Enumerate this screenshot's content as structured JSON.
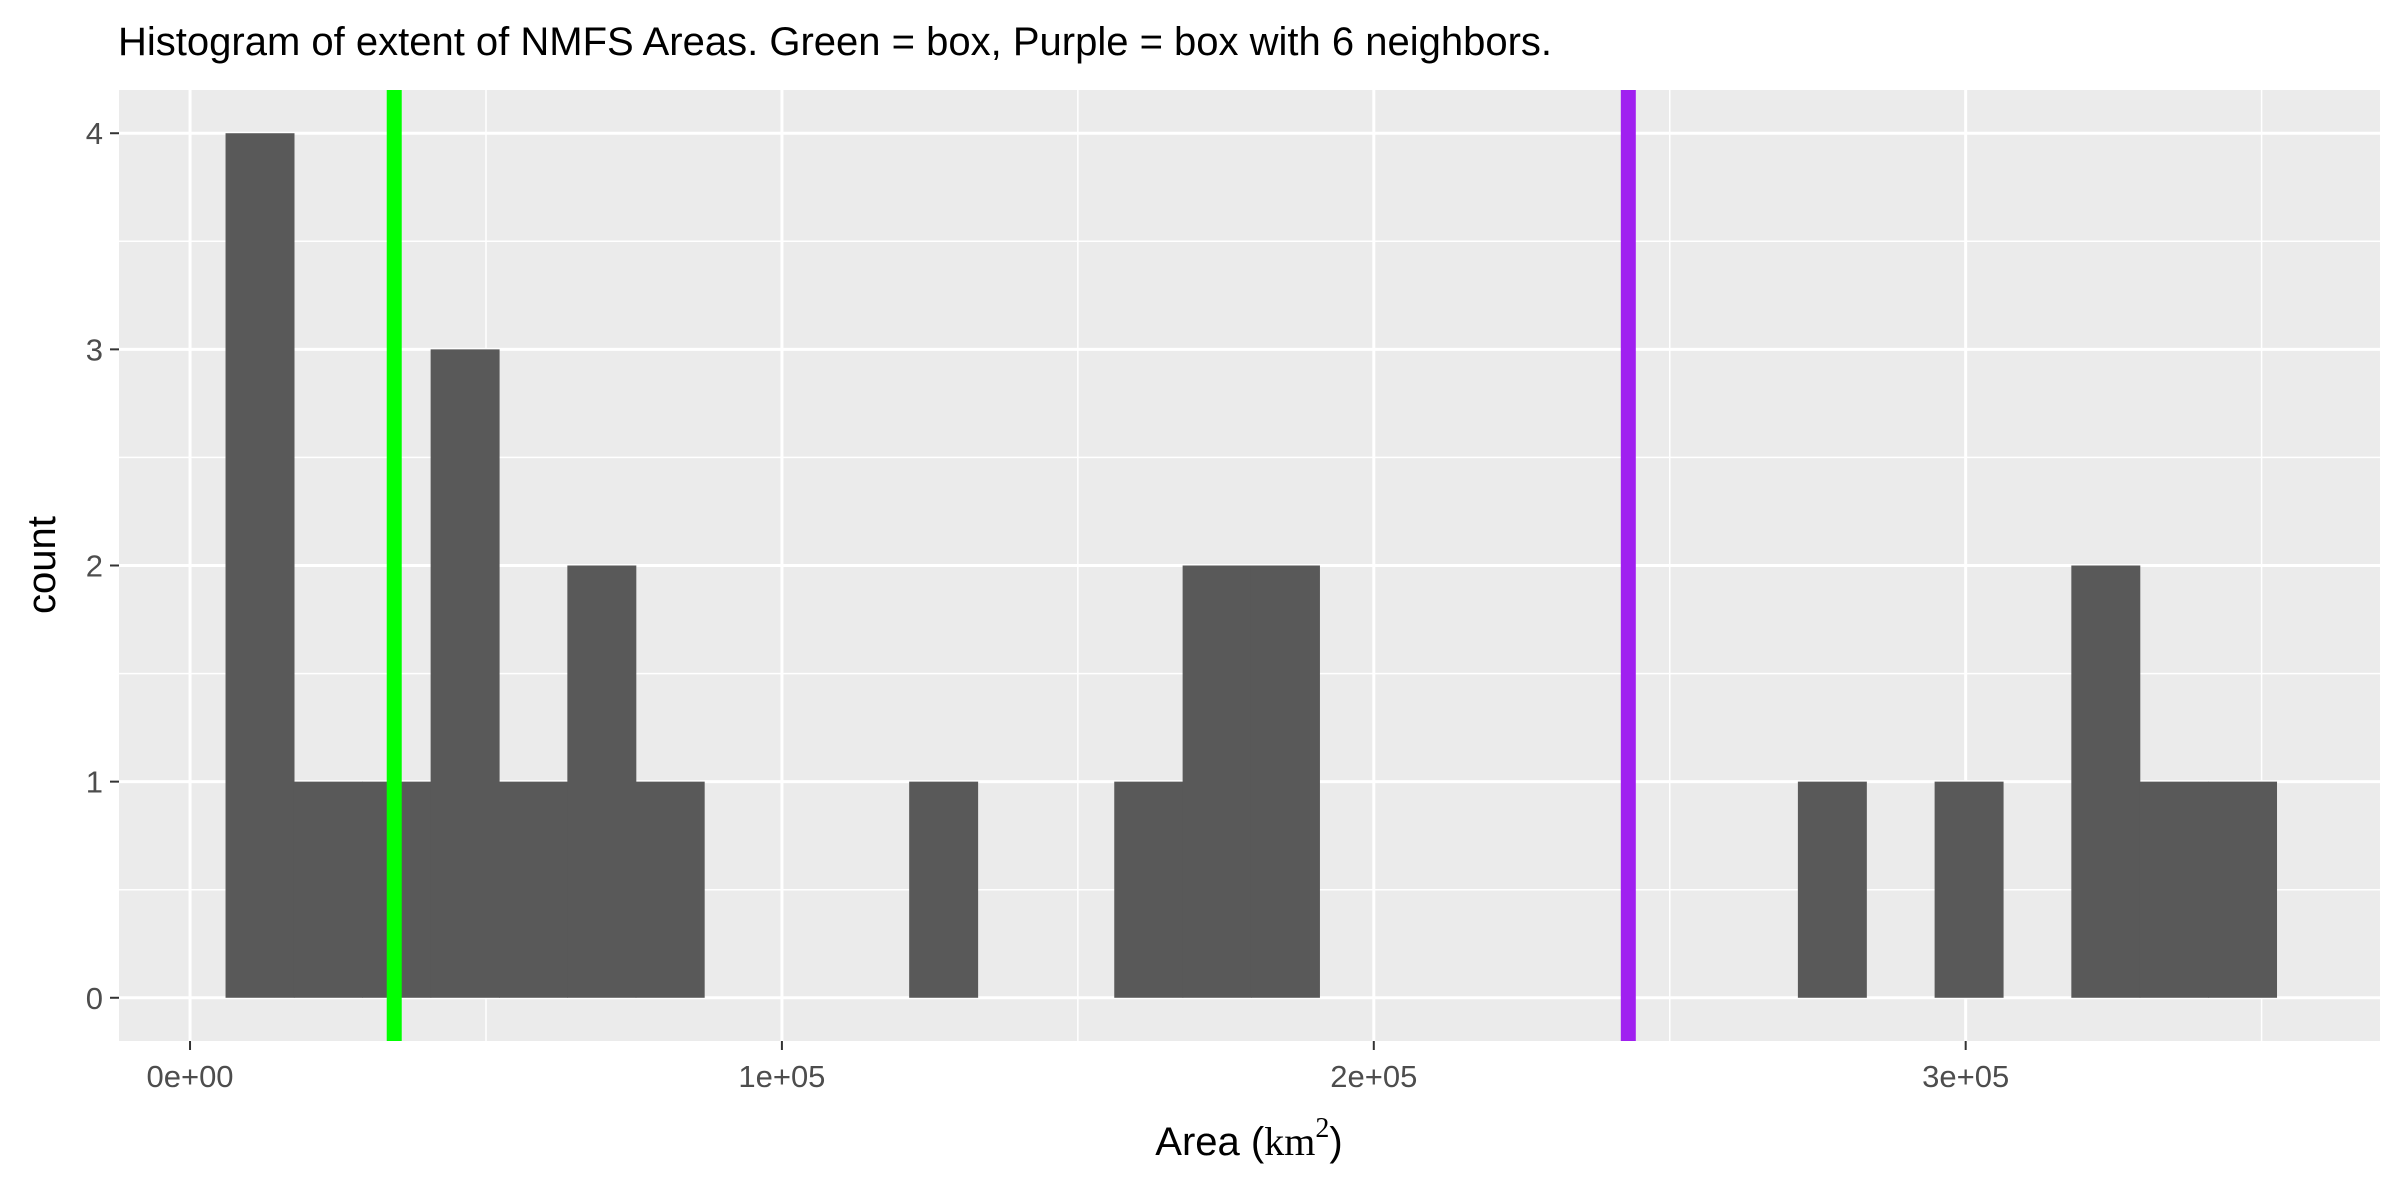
{
  "chart_data": {
    "type": "bar",
    "title": "Histogram of extent of NMFS Areas. Green = box, Purple = box with 6 neighbors.",
    "xlabel": {
      "prefix": "Area (",
      "unit_base": "km",
      "unit_exp": "2",
      "suffix": ")"
    },
    "ylabel": "count",
    "xlim": [
      -12000,
      370000
    ],
    "ylim": [
      -0.2,
      4.2
    ],
    "x_ticks": [
      {
        "value": 0,
        "label": "0e+00"
      },
      {
        "value": 100000,
        "label": "1e+05"
      },
      {
        "value": 200000,
        "label": "2e+05"
      },
      {
        "value": 300000,
        "label": "3e+05"
      }
    ],
    "y_ticks": [
      {
        "value": 0,
        "label": "0"
      },
      {
        "value": 1,
        "label": "1"
      },
      {
        "value": 2,
        "label": "2"
      },
      {
        "value": 3,
        "label": "3"
      },
      {
        "value": 4,
        "label": "4"
      }
    ],
    "bin_width": 11550,
    "bins": [
      {
        "x0": 6000,
        "count": 4
      },
      {
        "x0": 17550,
        "count": 1
      },
      {
        "x0": 29100,
        "count": 1
      },
      {
        "x0": 40650,
        "count": 3
      },
      {
        "x0": 52200,
        "count": 1
      },
      {
        "x0": 63750,
        "count": 2
      },
      {
        "x0": 75300,
        "count": 1
      },
      {
        "x0": 121500,
        "count": 1
      },
      {
        "x0": 156150,
        "count": 1
      },
      {
        "x0": 167700,
        "count": 2
      },
      {
        "x0": 179250,
        "count": 2
      },
      {
        "x0": 271650,
        "count": 1
      },
      {
        "x0": 294750,
        "count": 1
      },
      {
        "x0": 317850,
        "count": 2
      },
      {
        "x0": 329400,
        "count": 1
      },
      {
        "x0": 340950,
        "count": 1
      }
    ],
    "vlines": [
      {
        "name": "box",
        "x": 34500,
        "color": "#00ff00"
      },
      {
        "name": "box with 6 neighbors",
        "x": 243000,
        "color": "#a020f0"
      }
    ],
    "colors": {
      "panel_bg": "#ebebeb",
      "grid": "#ffffff",
      "bar_fill": "#595959",
      "tick_color": "#333333"
    },
    "grid": true,
    "legend": "none"
  }
}
